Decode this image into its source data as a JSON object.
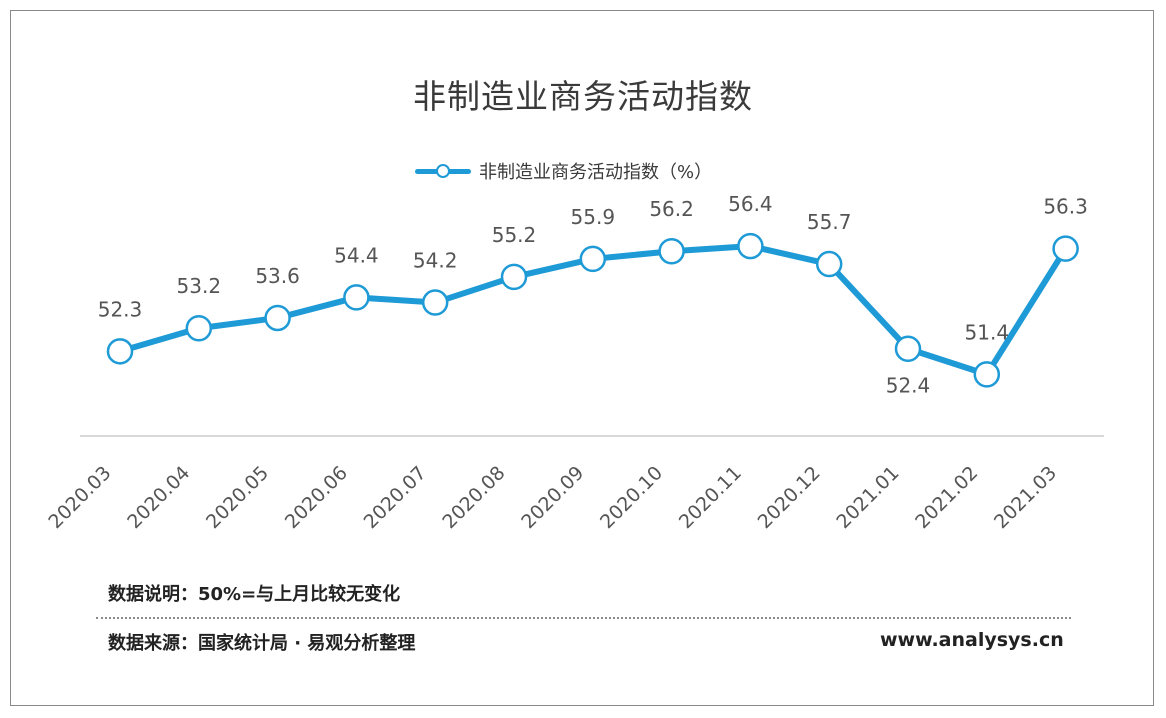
{
  "title": "非制造业商务活动指数",
  "chart_data": {
    "type": "line",
    "title": "非制造业商务活动指数",
    "categories": [
      "2020.03",
      "2020.04",
      "2020.05",
      "2020.06",
      "2020.07",
      "2020.08",
      "2020.09",
      "2020.10",
      "2020.11",
      "2020.12",
      "2021.01",
      "2021.02",
      "2021.03"
    ],
    "series": [
      {
        "name": "非制造业商务活动指数（%）",
        "values": [
          52.3,
          53.2,
          53.6,
          54.4,
          54.2,
          55.2,
          55.9,
          56.2,
          56.4,
          55.7,
          52.4,
          51.4,
          56.3
        ],
        "labels": [
          "52.3",
          "53.2",
          "53.6",
          "54.4",
          "54.2",
          "55.2",
          "55.9",
          "56.2",
          "56.4",
          "55.7",
          "52.4",
          "51.4",
          "56.3"
        ]
      }
    ],
    "ylim": [
      49,
      57.3
    ],
    "grid": false,
    "legend": "top-center",
    "color": "#1e9ad6"
  },
  "footer": {
    "note": "数据说明：50%=与上月比较无变化",
    "source": "数据来源：国家统计局 · 易观分析整理",
    "website": "www.analysys.cn"
  }
}
